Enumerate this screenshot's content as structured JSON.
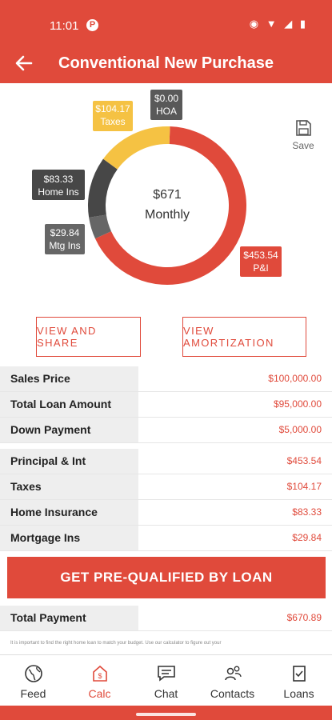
{
  "status": {
    "time": "11:01",
    "app_badge": "P",
    "system_icons": "◉ ▼ ◢ ▮"
  },
  "header": {
    "title": "Conventional New Purchase",
    "back_icon": "arrow-left-icon"
  },
  "save": {
    "label": "Save"
  },
  "chart_data": {
    "type": "pie",
    "center_value": "$671",
    "center_label": "Monthly",
    "slices": [
      {
        "label": "P&I",
        "value_label": "$453.54",
        "value": 453.54,
        "color": "#e04a3b"
      },
      {
        "label": "Mtg Ins",
        "value_label": "$29.84",
        "value": 29.84,
        "color": "#666666"
      },
      {
        "label": "Home Ins",
        "value_label": "$83.33",
        "value": 83.33,
        "color": "#474747"
      },
      {
        "label": "Taxes",
        "value_label": "$104.17",
        "value": 104.17,
        "color": "#f5c243"
      },
      {
        "label": "HOA",
        "value_label": "$0.00",
        "value": 0.0,
        "color": "#595959"
      }
    ]
  },
  "actions": {
    "view_share": "VIEW AND SHARE",
    "view_amortization": "VIEW AMORTIZATION"
  },
  "loan_details": [
    {
      "label": "Sales Price",
      "value": "$100,000.00"
    },
    {
      "label": "Total Loan Amount",
      "value": "$95,000.00"
    },
    {
      "label": "Down Payment",
      "value": "$5,000.00"
    }
  ],
  "payment_details": [
    {
      "label": "Principal & Int",
      "value": "$453.54"
    },
    {
      "label": "Taxes",
      "value": "$104.17"
    },
    {
      "label": "Home Insurance",
      "value": "$83.33"
    },
    {
      "label": "Mortgage Ins",
      "value": "$29.84"
    }
  ],
  "cta": {
    "label": "GET PRE-QUALIFIED BY LOAN"
  },
  "total": {
    "label": "Total Payment",
    "value": "$670.89"
  },
  "disclaimer": "It is important to find the right home loan to match your budget. Use our calculator to figure out your",
  "nav": [
    {
      "label": "Feed",
      "icon": "globe-icon"
    },
    {
      "label": "Calc",
      "icon": "calculator-dollar-icon"
    },
    {
      "label": "Chat",
      "icon": "chat-icon"
    },
    {
      "label": "Contacts",
      "icon": "contacts-icon"
    },
    {
      "label": "Loans",
      "icon": "loans-document-icon"
    }
  ],
  "colors": {
    "accent": "#e04a3b",
    "taxes": "#f5c243",
    "label_bg": "#eeeeee"
  }
}
